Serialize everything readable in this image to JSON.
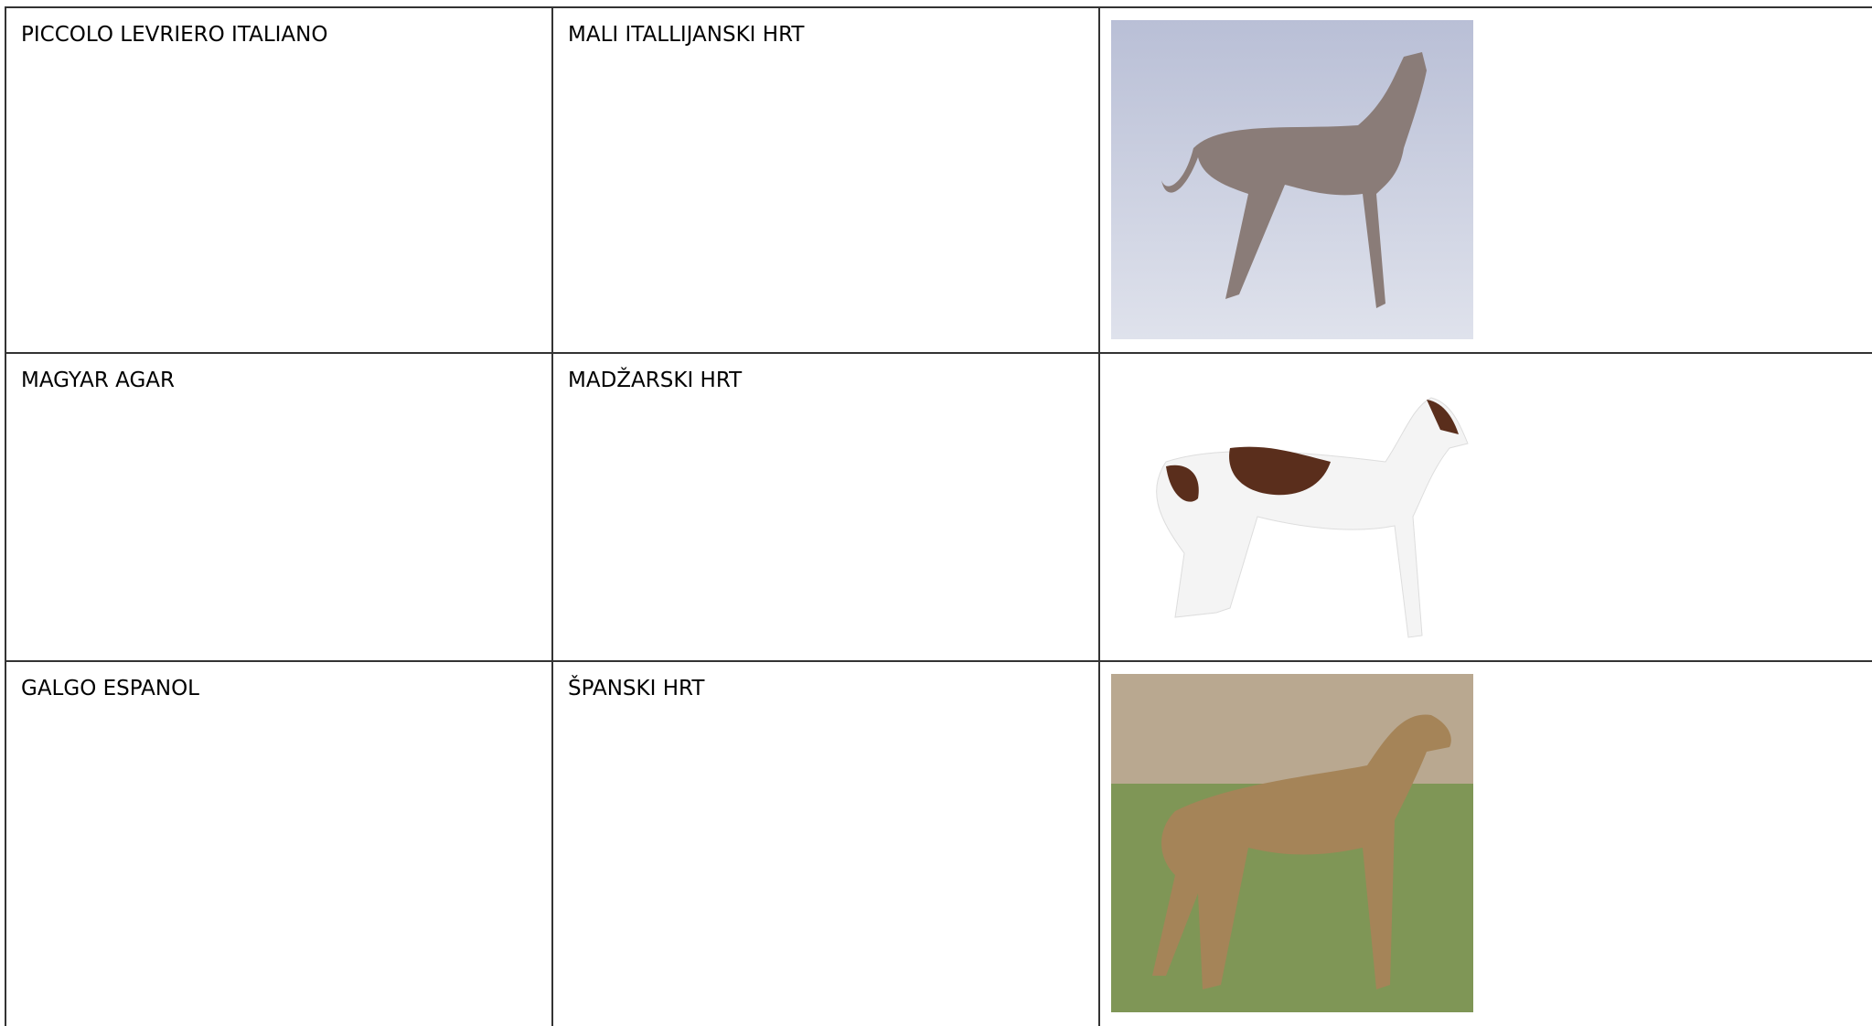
{
  "table": {
    "rows": [
      [
        "PICCOLO LEVRIERO ITALIANO",
        "MALI ITALLIJANSKI HRT"
      ],
      [
        "MAGYAR AGAR",
        "MADŽARSKI HRT"
      ],
      [
        "GALGO ESPANOL",
        "ŠPANSKI HRT"
      ]
    ]
  }
}
